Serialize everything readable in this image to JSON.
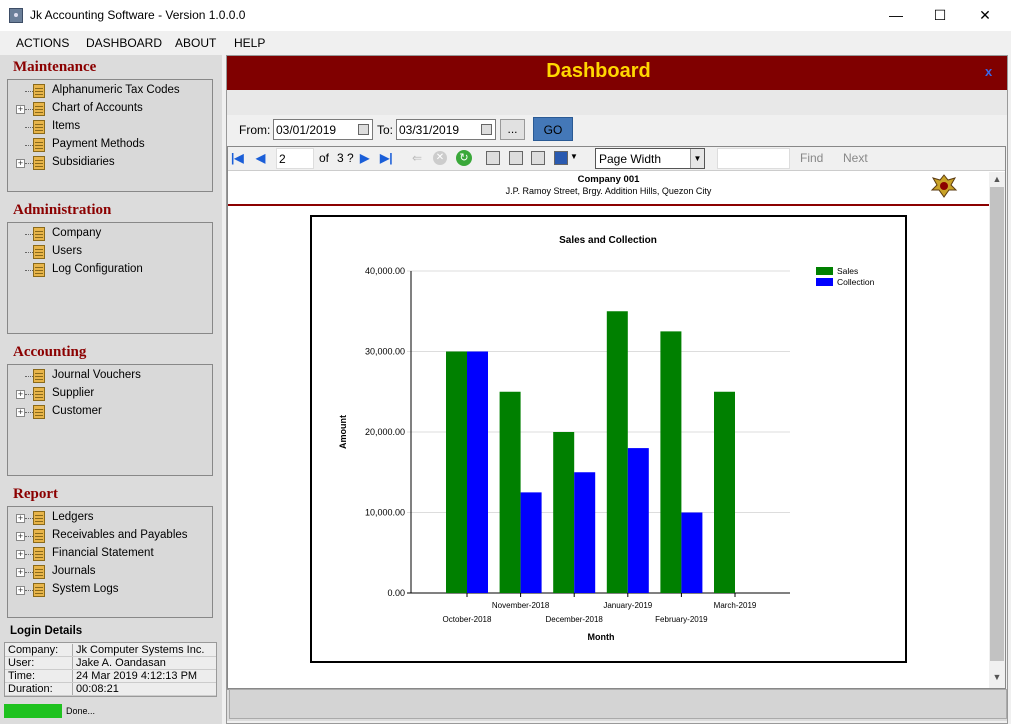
{
  "window": {
    "title": "Jk Accounting Software - Version 1.0.0.0"
  },
  "menu": [
    "ACTIONS",
    "DASHBOARD",
    "ABOUT",
    "HELP"
  ],
  "sidebar": {
    "maintenance": {
      "title": "Maintenance",
      "items": [
        "Alphanumeric Tax Codes",
        "Chart of Accounts",
        "Items",
        "Payment Methods",
        "Subsidiaries"
      ]
    },
    "administration": {
      "title": "Administration",
      "items": [
        "Company",
        "Users",
        "Log Configuration"
      ]
    },
    "accounting": {
      "title": "Accounting",
      "items": [
        "Journal Vouchers",
        "Supplier",
        "Customer"
      ]
    },
    "report": {
      "title": "Report",
      "items": [
        "Ledgers",
        "Receivables and Payables",
        "Financial Statement",
        "Journals",
        "System Logs"
      ]
    }
  },
  "login": {
    "title": "Login Details",
    "rows": [
      {
        "k": "Company:",
        "v": "Jk Computer Systems Inc."
      },
      {
        "k": "User:",
        "v": "Jake A. Oandasan"
      },
      {
        "k": "Time:",
        "v": "24 Mar 2019 4:12:13 PM"
      },
      {
        "k": "Duration:",
        "v": "00:08:21"
      }
    ]
  },
  "status": {
    "text": "Done..."
  },
  "dashboard": {
    "title": "Dashboard",
    "close": "x"
  },
  "filter": {
    "from_label": "From:",
    "from": "03/01/2019",
    "to_label": "To:",
    "to": "03/31/2019",
    "ellipsis": "...",
    "go": "GO"
  },
  "viewer": {
    "page": "2",
    "of": "of",
    "total": "3 ?",
    "zoom": "Page Width",
    "find": "Find",
    "next": "Next"
  },
  "report": {
    "company": "Company 001",
    "address": "J.P. Ramoy Street, Brgy. Addition Hills, Quezon City"
  },
  "chart_data": {
    "type": "bar",
    "title": "Sales and Collection",
    "xlabel": "Month",
    "ylabel": "Amount",
    "categories": [
      "October-2018",
      "November-2018",
      "December-2018",
      "January-2019",
      "February-2019",
      "March-2019"
    ],
    "series": [
      {
        "name": "Sales",
        "color": "#008000",
        "values": [
          30000,
          25000,
          20000,
          35000,
          32500,
          25000
        ]
      },
      {
        "name": "Collection",
        "color": "#0000ff",
        "values": [
          30000,
          12500,
          15000,
          18000,
          10000,
          0
        ]
      }
    ],
    "ylim": [
      0,
      40000
    ],
    "yticks": [
      "0.00",
      "10,000.00",
      "20,000.00",
      "30,000.00",
      "40,000.00"
    ],
    "legend": "top-right"
  }
}
